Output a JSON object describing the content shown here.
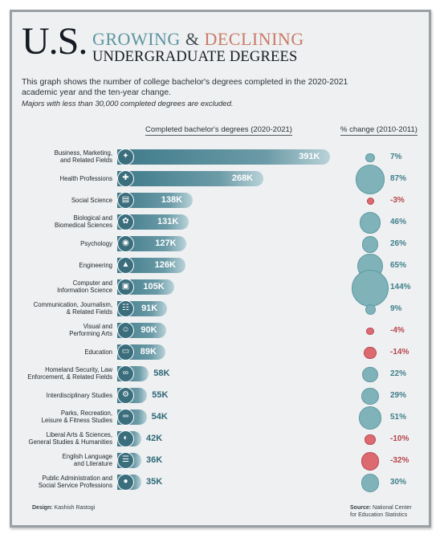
{
  "title": {
    "us": "U.S.",
    "growing": "GROWING",
    "amp": "&",
    "declining": "DECLINING",
    "line2": "UNDERGRADUATE DEGREES"
  },
  "intro": "This graph shows the number of college bachelor's degrees completed in the 2020-2021 academic year and the ten-year change.",
  "note": "Majors with less than 30,000 completed degrees are excluded.",
  "footer": {
    "design_label": "Design:",
    "design_name": "Kashish Rastogi",
    "source_label": "Source:",
    "source_text": "National Center",
    "source_text2": "for Education Statistics"
  },
  "colors": {
    "bar": "#3f7a8a",
    "positive": "#7fb3b9",
    "negative": "#dc6a70",
    "frame": "#eef0f1"
  },
  "chart_data": {
    "type": "bar",
    "orientation": "horizontal",
    "xlabel": "Completed bachelor's degrees (2020-2021)",
    "change_label": "% change (2010-2011)",
    "categories": [
      "Business, Marketing, and Related Fields",
      "Health Professions",
      "Social Science",
      "Biological and Biomedical Sciences",
      "Psychology",
      "Engineering",
      "Computer and Information Science",
      "Communication, Journalism, & Related Fields",
      "Visual and Performing Arts",
      "Education",
      "Homeland Security, Law Enforcement, & Related Fields",
      "Interdisciplinary Studies",
      "Parks, Recreation, Leisure & Fitness Studies",
      "Liberal Arts & Sciences, General Studies & Humanities",
      "English Language and Literature",
      "Public Administration and Social Service Professions"
    ],
    "labels": [
      [
        "Business, Marketing,",
        "and Related Fields"
      ],
      [
        "Health Professions"
      ],
      [
        "Social Science"
      ],
      [
        "Biological and",
        "Biomedical Sciences"
      ],
      [
        "Psychology"
      ],
      [
        "Engineering"
      ],
      [
        "Computer and",
        "Information Science"
      ],
      [
        "Communication, Journalism,",
        "& Related Fields"
      ],
      [
        "Visual and",
        "Performing Arts"
      ],
      [
        "Education"
      ],
      [
        "Homeland Security, Law",
        "Enforcement, & Related Fields"
      ],
      [
        "Interdisciplinary Studies"
      ],
      [
        "Parks, Recreation,",
        "Leisure & Fitness Studies"
      ],
      [
        "Liberal Arts & Sciences,",
        "General Studies & Humanities"
      ],
      [
        "English Language",
        "and Literature"
      ],
      [
        "Public Administration and",
        "Social Service Professions"
      ]
    ],
    "icons": [
      "handshake-icon",
      "medical-icon",
      "book-icon",
      "brain-icon",
      "psychology-icon",
      "graduation-cap-icon",
      "computer-user-icon",
      "broadcast-icon",
      "theater-masks-icon",
      "classroom-icon",
      "handcuffs-icon",
      "head-gear-icon",
      "dumbbell-icon",
      "palette-icon",
      "document-icon",
      "person-icon"
    ],
    "values": [
      391,
      268,
      138,
      131,
      127,
      126,
      105,
      91,
      90,
      89,
      58,
      55,
      54,
      42,
      36,
      35
    ],
    "value_labels": [
      "391K",
      "268K",
      "138K",
      "131K",
      "127K",
      "126K",
      "105K",
      "91K",
      "90K",
      "89K",
      "58K",
      "55K",
      "54K",
      "42K",
      "36K",
      "35K"
    ],
    "pct_change": [
      7,
      87,
      -3,
      46,
      26,
      65,
      144,
      9,
      -4,
      -14,
      22,
      29,
      51,
      -10,
      -32,
      30
    ],
    "pct_labels": [
      "7%",
      "87%",
      "-3%",
      "46%",
      "26%",
      "65%",
      "144%",
      "9%",
      "-4%",
      "-14%",
      "22%",
      "29%",
      "51%",
      "-10%",
      "-32%",
      "30%"
    ]
  }
}
